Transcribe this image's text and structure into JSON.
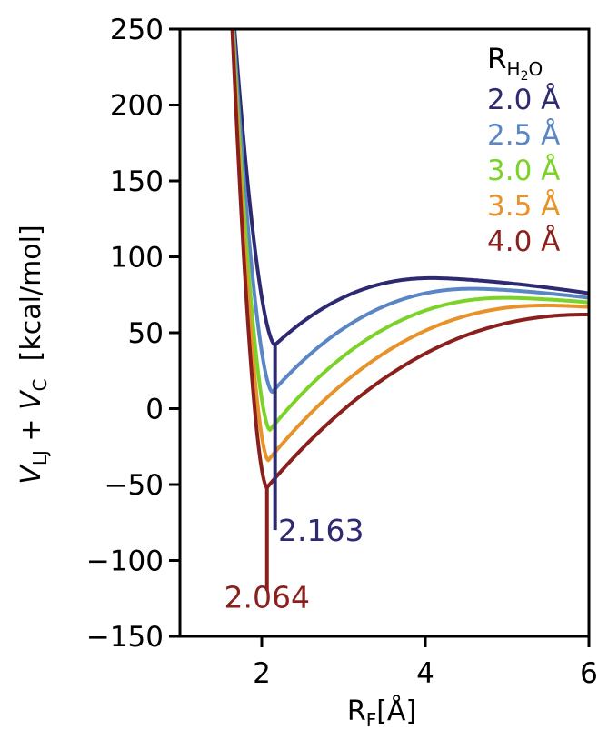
{
  "chart_data": {
    "type": "line",
    "title": "",
    "xlabel": {
      "main": "R",
      "sub": "F",
      "unit": "[Å]"
    },
    "ylabel": {
      "v1": "V",
      "s1": "LJ",
      "plus": " + ",
      "v2": "V",
      "s2": "C",
      "unit": "[kcal/mol]"
    },
    "xlim": [
      1,
      6
    ],
    "ylim": [
      -150,
      250
    ],
    "xticks": [
      "2",
      "4",
      "6"
    ],
    "xtick_values": [
      2,
      4,
      6
    ],
    "yticks": [
      "250",
      "200",
      "150",
      "100",
      "50",
      "0",
      "−50",
      "−100",
      "−150"
    ],
    "ytick_values": [
      250,
      200,
      150,
      100,
      50,
      0,
      -50,
      -100,
      -150
    ],
    "grid": false,
    "legend": {
      "placement": "top-right",
      "title": {
        "main": "R",
        "sub": "H",
        "sub2": "2",
        "sub3": "O"
      },
      "entries": [
        "2.0 Å",
        "2.5 Å",
        "3.0 Å",
        "3.5 Å",
        "4.0 Å"
      ]
    },
    "series": [
      {
        "name": "2.0 Å",
        "color": "#2e2a72",
        "min_x": 2.163,
        "min_y": 42,
        "plateau": 86,
        "plateau_x": 4.1,
        "end_y": 76
      },
      {
        "name": "2.5 Å",
        "color": "#5b86c5",
        "min_x": 2.13,
        "min_y": 11,
        "plateau": 79,
        "plateau_x": 4.6,
        "end_y": 73
      },
      {
        "name": "3.0 Å",
        "color": "#7bd327",
        "min_x": 2.1,
        "min_y": -14,
        "plateau": 73,
        "plateau_x": 5.0,
        "end_y": 70
      },
      {
        "name": "3.5 Å",
        "color": "#e8922a",
        "min_x": 2.08,
        "min_y": -34,
        "plateau": 68,
        "plateau_x": 5.5,
        "end_y": 67
      },
      {
        "name": "4.0 Å",
        "color": "#8b1f1b",
        "min_x": 2.064,
        "min_y": -52,
        "plateau": 62,
        "plateau_x": 6.0,
        "end_y": 62
      }
    ],
    "annotations": [
      {
        "text": "2.163",
        "x": 2.163,
        "y_top": 42,
        "y_bottom": -80,
        "color": "#2e2a72",
        "label_x": 2.2,
        "label_y": -87
      },
      {
        "text": "2.064",
        "x": 2.064,
        "y_top": -52,
        "y_bottom": -120,
        "color": "#8b1f1b",
        "label_x": 2.064,
        "label_y": -131
      }
    ]
  }
}
